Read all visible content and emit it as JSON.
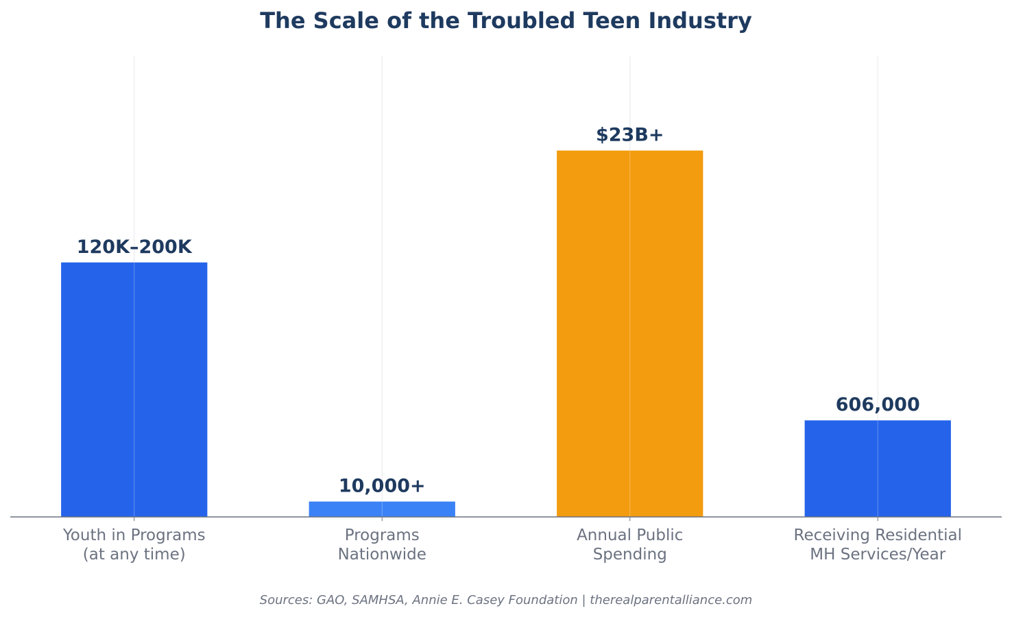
{
  "chart_data": {
    "type": "bar",
    "title": "The Scale of the Troubled Teen Industry",
    "categories": [
      [
        "Youth in Programs",
        "(at any time)"
      ],
      [
        "Programs",
        "Nationwide"
      ],
      [
        "Annual Public",
        "Spending"
      ],
      [
        "Receiving Residential",
        "MH Services/Year"
      ]
    ],
    "values": [
      58,
      3.5,
      83.5,
      22
    ],
    "value_labels": [
      "120K–200K",
      "10,000+",
      "$23B+",
      "606,000"
    ],
    "bar_colors": [
      "#2563eb",
      "#3b82f6",
      "#f39c0f",
      "#2563eb"
    ],
    "ylim": [
      0,
      105
    ],
    "grid": "vertical",
    "source_note": "Sources: GAO, SAMHSA, Annie E. Casey Foundation | therealparentalliance.com"
  },
  "colors": {
    "title": "#1e3a5f",
    "value_label": "#1e3a5f",
    "tick_label": "#6b7280",
    "axis": "#6b7280",
    "grid": "#e5e7eb",
    "source_note": "#6b7280"
  }
}
